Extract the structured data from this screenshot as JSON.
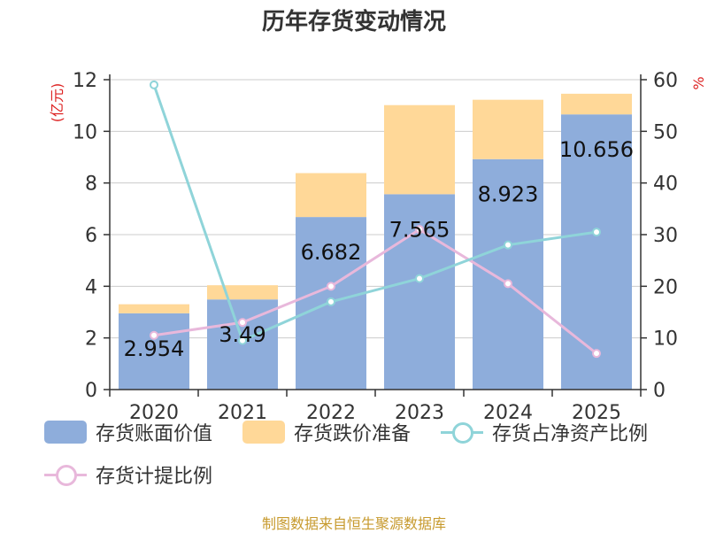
{
  "title": "历年存货变动情况",
  "source": "制图数据来自恒生聚源数据库",
  "chart_data": {
    "type": "bar",
    "categories": [
      "2020",
      "2021",
      "2022",
      "2023",
      "2024",
      "2025"
    ],
    "series": [
      {
        "name": "存货账面价值",
        "kind": "stacked-bar",
        "axis": "left",
        "color": "#8eaddb",
        "values": [
          2.954,
          3.49,
          6.682,
          7.565,
          8.923,
          10.656
        ],
        "labels": [
          "2.954",
          "3.49",
          "6.682",
          "7.565",
          "8.923",
          "10.656"
        ]
      },
      {
        "name": "存货跌价准备",
        "kind": "stacked-bar",
        "axis": "left",
        "color": "#ffd898",
        "values": [
          0.35,
          0.55,
          1.7,
          3.45,
          2.3,
          0.8
        ]
      },
      {
        "name": "存货占净资产比例",
        "kind": "line",
        "axis": "right",
        "color": "#8fd4d9",
        "values": [
          59,
          9.5,
          17,
          21.5,
          28,
          30.5
        ]
      },
      {
        "name": "存货计提比例",
        "kind": "line",
        "axis": "right",
        "color": "#e8b8db",
        "values": [
          10.5,
          13,
          20,
          31,
          20.5,
          7
        ]
      }
    ],
    "y_left": {
      "label": "(亿元)",
      "ticks": [
        "0",
        "2",
        "4",
        "6",
        "8",
        "10",
        "12"
      ],
      "min": 0,
      "max": 12
    },
    "y_right": {
      "label": "%",
      "ticks": [
        "0",
        "10",
        "20",
        "30",
        "40",
        "50",
        "60"
      ],
      "min": 0,
      "max": 60
    },
    "grid": true,
    "legend_position": "bottom"
  }
}
